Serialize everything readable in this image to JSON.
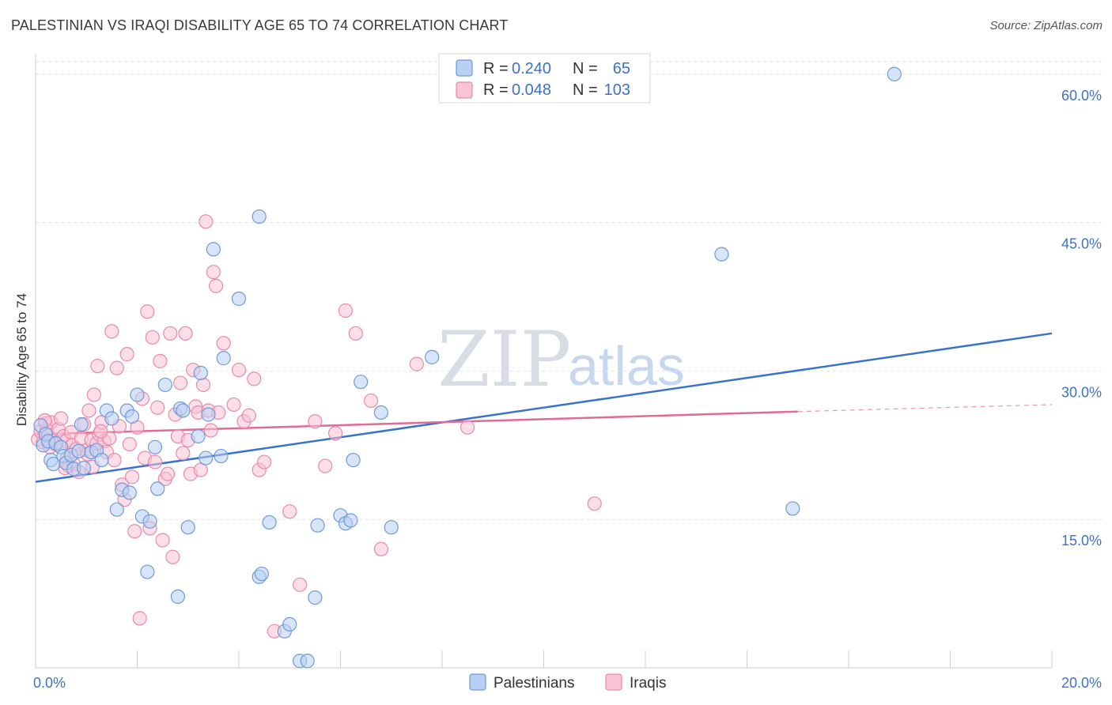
{
  "header": {
    "title": "PALESTINIAN VS IRAQI DISABILITY AGE 65 TO 74 CORRELATION CHART",
    "source": "Source: ZipAtlas.com"
  },
  "watermark": {
    "zip": "ZIP",
    "atlas": "atlas"
  },
  "legend": {
    "r_label": "R =",
    "n_label": "N =",
    "rows": [
      {
        "r": "0.240",
        "n": "65"
      },
      {
        "r": "0.048",
        "n": "103"
      }
    ]
  },
  "chart_data": {
    "type": "scatter",
    "title": "Palestinian vs Iraqi Disability Age 65 to 74 Correlation Chart",
    "xlabel": "",
    "ylabel": "Disability Age 65 to 74",
    "xlim": [
      0,
      20
    ],
    "ylim": [
      0,
      61.5
    ],
    "x_tick_labels": [
      {
        "value": 0,
        "label": "0.0%"
      },
      {
        "value": 20,
        "label": "20.0%"
      }
    ],
    "y_tick_labels": [
      {
        "value": 15,
        "label": "15.0%"
      },
      {
        "value": 30,
        "label": "30.0%"
      },
      {
        "value": 45,
        "label": "45.0%"
      },
      {
        "value": 60,
        "label": "60.0%"
      }
    ],
    "grid": true,
    "legend_position": "top-center",
    "colors": {
      "palestinians_fill": "#b8d0f4",
      "palestinians_stroke": "#6f9ad8",
      "palestinians_line": "#3b73cc",
      "iraqis_fill": "#f8c3d4",
      "iraqis_stroke": "#e88aab",
      "iraqis_line": "#e06b94"
    },
    "series": [
      {
        "name": "Palestinians",
        "legend_label": "Palestinians",
        "r": 0.24,
        "n": 65,
        "trend": {
          "x": [
            0,
            20
          ],
          "y": [
            18.8,
            33.8
          ]
        },
        "points": [
          [
            0.1,
            24.5
          ],
          [
            0.15,
            22.5
          ],
          [
            0.2,
            23.6
          ],
          [
            0.25,
            22.9
          ],
          [
            0.3,
            21.0
          ],
          [
            0.35,
            20.6
          ],
          [
            0.4,
            22.7
          ],
          [
            0.5,
            22.3
          ],
          [
            0.55,
            21.4
          ],
          [
            0.6,
            20.7
          ],
          [
            0.7,
            21.5
          ],
          [
            0.75,
            20.1
          ],
          [
            0.85,
            21.9
          ],
          [
            0.9,
            24.6
          ],
          [
            0.95,
            20.2
          ],
          [
            1.1,
            21.8
          ],
          [
            1.2,
            22.0
          ],
          [
            1.3,
            21.0
          ],
          [
            1.4,
            26.0
          ],
          [
            1.5,
            25.2
          ],
          [
            1.6,
            16.0
          ],
          [
            1.7,
            18.0
          ],
          [
            1.8,
            26.0
          ],
          [
            1.85,
            17.7
          ],
          [
            1.9,
            25.4
          ],
          [
            2.0,
            27.6
          ],
          [
            2.1,
            15.3
          ],
          [
            2.2,
            9.7
          ],
          [
            2.25,
            14.8
          ],
          [
            2.35,
            22.3
          ],
          [
            2.4,
            18.1
          ],
          [
            2.55,
            28.6
          ],
          [
            2.8,
            7.2
          ],
          [
            2.85,
            26.2
          ],
          [
            2.9,
            26.0
          ],
          [
            3.0,
            14.2
          ],
          [
            3.2,
            23.4
          ],
          [
            3.25,
            29.8
          ],
          [
            3.35,
            21.2
          ],
          [
            3.4,
            25.6
          ],
          [
            3.5,
            42.3
          ],
          [
            3.65,
            21.4
          ],
          [
            3.7,
            31.3
          ],
          [
            4.0,
            37.3
          ],
          [
            4.4,
            9.2
          ],
          [
            4.45,
            9.5
          ],
          [
            4.4,
            45.6
          ],
          [
            4.6,
            14.7
          ],
          [
            4.9,
            3.7
          ],
          [
            5.0,
            4.4
          ],
          [
            5.2,
            0.7
          ],
          [
            5.35,
            0.7
          ],
          [
            5.5,
            7.1
          ],
          [
            5.55,
            14.4
          ],
          [
            6.0,
            15.4
          ],
          [
            6.1,
            14.6
          ],
          [
            6.2,
            14.9
          ],
          [
            6.25,
            21.0
          ],
          [
            6.4,
            28.9
          ],
          [
            6.8,
            25.8
          ],
          [
            7.0,
            14.2
          ],
          [
            7.8,
            31.4
          ],
          [
            13.5,
            41.8
          ],
          [
            14.9,
            16.1
          ],
          [
            16.9,
            60.0
          ]
        ]
      },
      {
        "name": "Iraqis",
        "legend_label": "Iraqis",
        "r": 0.048,
        "n": 103,
        "trend": {
          "x": [
            0,
            15
          ],
          "y": [
            23.6,
            25.9
          ],
          "dashed_x": [
            15,
            20
          ],
          "dashed_y": [
            25.9,
            26.6
          ]
        },
        "points": [
          [
            0.05,
            23.1
          ],
          [
            0.1,
            23.9
          ],
          [
            0.15,
            22.8
          ],
          [
            0.2,
            24.7
          ],
          [
            0.22,
            24.0
          ],
          [
            0.25,
            23.5
          ],
          [
            0.28,
            22.3
          ],
          [
            0.3,
            24.8
          ],
          [
            0.35,
            23.0
          ],
          [
            0.4,
            22.6
          ],
          [
            0.45,
            24.1
          ],
          [
            0.5,
            25.2
          ],
          [
            0.55,
            23.4
          ],
          [
            0.6,
            22.9
          ],
          [
            0.62,
            21.2
          ],
          [
            0.65,
            20.4
          ],
          [
            0.7,
            23.8
          ],
          [
            0.72,
            22.5
          ],
          [
            0.75,
            20.6
          ],
          [
            0.8,
            22.1
          ],
          [
            0.85,
            19.8
          ],
          [
            0.9,
            23.2
          ],
          [
            0.95,
            24.6
          ],
          [
            1.0,
            22.0
          ],
          [
            1.02,
            21.6
          ],
          [
            1.05,
            26.0
          ],
          [
            1.1,
            23.0
          ],
          [
            1.12,
            20.3
          ],
          [
            1.15,
            27.6
          ],
          [
            1.2,
            22.7
          ],
          [
            1.22,
            30.5
          ],
          [
            1.25,
            23.6
          ],
          [
            1.3,
            24.8
          ],
          [
            1.35,
            22.9
          ],
          [
            1.4,
            21.8
          ],
          [
            1.45,
            23.2
          ],
          [
            1.5,
            34.0
          ],
          [
            1.55,
            21.0
          ],
          [
            1.6,
            30.3
          ],
          [
            1.65,
            24.4
          ],
          [
            1.7,
            18.5
          ],
          [
            1.75,
            17.0
          ],
          [
            1.8,
            31.7
          ],
          [
            1.85,
            22.6
          ],
          [
            1.9,
            19.3
          ],
          [
            1.95,
            13.8
          ],
          [
            2.0,
            24.3
          ],
          [
            2.05,
            5.0
          ],
          [
            2.1,
            27.2
          ],
          [
            2.15,
            21.2
          ],
          [
            2.2,
            36.0
          ],
          [
            2.25,
            14.1
          ],
          [
            2.3,
            33.4
          ],
          [
            2.35,
            20.8
          ],
          [
            2.4,
            26.3
          ],
          [
            2.45,
            31.0
          ],
          [
            2.5,
            12.9
          ],
          [
            2.55,
            19.1
          ],
          [
            2.6,
            19.6
          ],
          [
            2.65,
            33.8
          ],
          [
            2.7,
            11.2
          ],
          [
            2.75,
            25.6
          ],
          [
            2.8,
            23.4
          ],
          [
            2.85,
            28.8
          ],
          [
            2.9,
            21.7
          ],
          [
            2.95,
            33.8
          ],
          [
            3.0,
            23.0
          ],
          [
            3.05,
            19.6
          ],
          [
            3.1,
            30.1
          ],
          [
            3.15,
            26.4
          ],
          [
            3.2,
            25.8
          ],
          [
            3.25,
            20.0
          ],
          [
            3.3,
            28.6
          ],
          [
            3.35,
            45.1
          ],
          [
            3.4,
            26.0
          ],
          [
            3.45,
            24.0
          ],
          [
            3.5,
            40.0
          ],
          [
            3.55,
            38.6
          ],
          [
            3.6,
            25.8
          ],
          [
            3.7,
            32.8
          ],
          [
            3.9,
            26.6
          ],
          [
            4.0,
            30.1
          ],
          [
            4.1,
            24.9
          ],
          [
            4.2,
            25.5
          ],
          [
            4.3,
            29.2
          ],
          [
            4.4,
            20.0
          ],
          [
            4.5,
            20.8
          ],
          [
            4.7,
            3.7
          ],
          [
            5.0,
            15.8
          ],
          [
            5.2,
            8.4
          ],
          [
            5.5,
            24.9
          ],
          [
            5.7,
            20.4
          ],
          [
            5.9,
            23.7
          ],
          [
            6.1,
            36.1
          ],
          [
            6.3,
            33.8
          ],
          [
            6.6,
            27.0
          ],
          [
            6.8,
            12.0
          ],
          [
            7.5,
            30.7
          ],
          [
            8.5,
            24.3
          ],
          [
            11.0,
            16.6
          ],
          [
            0.18,
            25.0
          ],
          [
            0.58,
            20.2
          ],
          [
            1.28,
            23.9
          ]
        ]
      }
    ]
  }
}
